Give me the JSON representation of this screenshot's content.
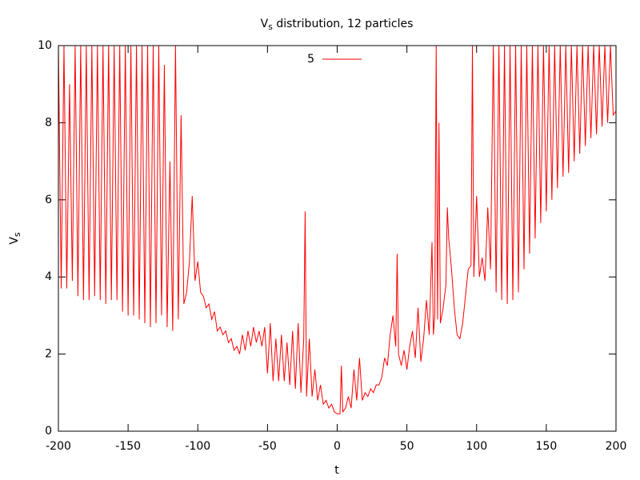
{
  "chart_data": {
    "type": "line",
    "title": [
      "V",
      "s",
      " distribution, 12 particles"
    ],
    "xlabel": "t",
    "ylabel": [
      "V",
      "s"
    ],
    "xlim": [
      -200,
      200
    ],
    "xticks": [
      -200,
      -150,
      -100,
      -50,
      0,
      50,
      100,
      150,
      200
    ],
    "ylim": [
      0,
      10
    ],
    "yticks": [
      0,
      2,
      4,
      6,
      8,
      10
    ],
    "grid": false,
    "legend": "top",
    "x": [
      -200,
      -198,
      -196,
      -194,
      -192,
      -190,
      -188,
      -186,
      -184,
      -182,
      -180,
      -178,
      -176,
      -174,
      -172,
      -170,
      -168,
      -166,
      -164,
      -162,
      -160,
      -158,
      -156,
      -154,
      -152,
      -150,
      -148,
      -146,
      -144,
      -142,
      -140,
      -138,
      -136,
      -134,
      -132,
      -130,
      -128,
      -126,
      -124,
      -122,
      -120,
      -118,
      -116,
      -114,
      -112,
      -110,
      -108,
      -106,
      -104,
      -102,
      -100,
      -98,
      -96,
      -94,
      -92,
      -90,
      -88,
      -86,
      -84,
      -82,
      -80,
      -78,
      -76,
      -74,
      -72,
      -70,
      -68,
      -66,
      -64,
      -62,
      -60,
      -58,
      -56,
      -54,
      -52,
      -50,
      -48,
      -46,
      -44,
      -42,
      -40,
      -38,
      -36,
      -34,
      -32,
      -30,
      -28,
      -26,
      -24,
      -23,
      -22,
      -20,
      -18,
      -16,
      -14,
      -12,
      -10,
      -8,
      -6,
      -4,
      -2,
      0,
      2,
      3,
      4,
      6,
      8,
      10,
      12,
      14,
      16,
      18,
      20,
      22,
      24,
      26,
      28,
      30,
      32,
      34,
      36,
      38,
      40,
      42,
      43,
      44,
      46,
      48,
      50,
      52,
      54,
      56,
      58,
      60,
      62,
      64,
      66,
      68,
      69,
      70,
      71,
      72,
      73,
      74,
      76,
      78,
      79,
      80,
      82,
      84,
      86,
      88,
      90,
      92,
      94,
      96,
      97,
      98,
      100,
      102,
      104,
      106,
      108,
      110,
      112,
      114,
      116,
      118,
      120,
      122,
      124,
      126,
      128,
      130,
      132,
      134,
      136,
      138,
      140,
      142,
      144,
      146,
      148,
      150,
      152,
      154,
      156,
      158,
      160,
      162,
      164,
      166,
      168,
      170,
      172,
      174,
      176,
      178,
      180,
      182,
      184,
      186,
      188,
      190,
      192,
      194,
      196,
      198,
      200
    ],
    "series": [
      {
        "name": "5",
        "color": "#ff0000",
        "values": [
          10,
          3.7,
          10,
          3.7,
          9,
          3.9,
          10,
          3.5,
          10,
          3.4,
          10,
          3.4,
          10,
          3.5,
          10,
          3.4,
          10,
          3.3,
          10,
          3.4,
          10,
          3.4,
          10,
          3.1,
          10,
          3.0,
          10,
          3.0,
          10,
          2.9,
          10,
          2.8,
          10,
          2.7,
          10,
          2.8,
          10,
          3.0,
          9.5,
          2.7,
          7,
          2.6,
          10,
          2.9,
          8.2,
          3.3,
          3.6,
          4.4,
          6.1,
          3.9,
          4.4,
          3.6,
          3.5,
          3.2,
          3.3,
          2.9,
          3.1,
          2.6,
          2.7,
          2.5,
          2.6,
          2.3,
          2.4,
          2.1,
          2.2,
          2.0,
          2.5,
          2.1,
          2.6,
          2.2,
          2.7,
          2.3,
          2.6,
          2.2,
          2.7,
          1.5,
          2.8,
          1.3,
          2.4,
          1.3,
          2.5,
          1.3,
          2.3,
          1.2,
          2.6,
          1.1,
          2.8,
          1.0,
          2.4,
          5.7,
          0.9,
          2.4,
          0.9,
          1.6,
          0.8,
          1.2,
          0.7,
          0.8,
          0.6,
          0.7,
          0.5,
          0.45,
          0.45,
          1.7,
          0.5,
          0.6,
          0.9,
          0.6,
          1.6,
          0.8,
          1.9,
          0.8,
          1.0,
          0.9,
          1.1,
          1.0,
          1.2,
          1.2,
          1.4,
          1.9,
          1.7,
          2.5,
          3.0,
          2.2,
          4.6,
          2.0,
          1.7,
          2.1,
          1.6,
          2.2,
          2.6,
          1.9,
          3.2,
          1.8,
          2.4,
          3.4,
          2.5,
          4.9,
          2.5,
          3.0,
          10,
          2.9,
          8.0,
          2.8,
          3.2,
          3.8,
          5.8,
          5.0,
          4.2,
          3.2,
          2.5,
          2.4,
          2.8,
          3.5,
          4.2,
          4.3,
          10,
          4.0,
          6.1,
          4.0,
          4.5,
          3.9,
          5.8,
          4.2,
          10,
          3.6,
          10,
          3.4,
          10,
          3.3,
          10,
          3.4,
          10,
          3.6,
          10,
          4.2,
          10,
          4.6,
          10,
          5.0,
          10,
          5.4,
          10,
          5.7,
          10,
          6.0,
          10,
          6.3,
          10,
          6.6,
          10,
          6.7,
          10,
          7.0,
          10,
          7.2,
          10,
          7.4,
          10,
          7.6,
          10,
          7.7,
          10,
          7.9,
          10,
          8.0,
          10,
          8.2,
          8.3
        ]
      }
    ]
  }
}
